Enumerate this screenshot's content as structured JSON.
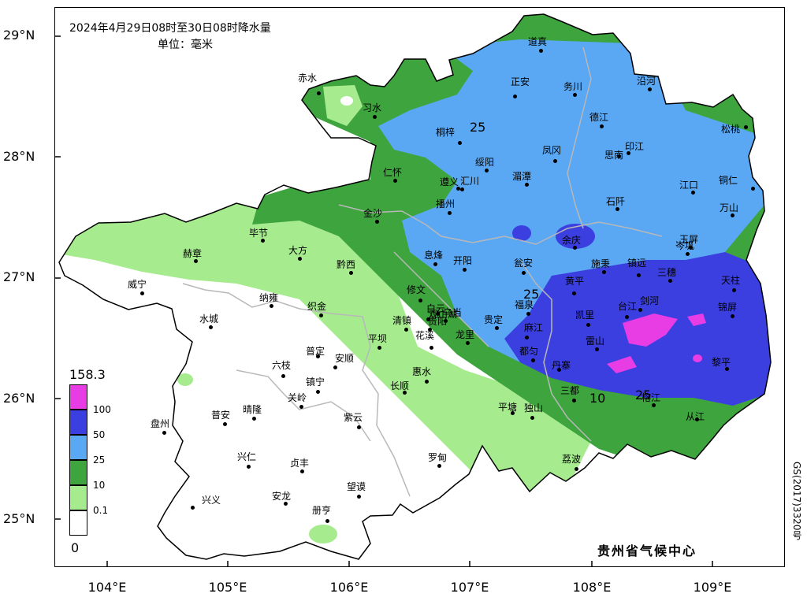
{
  "title": "2024年4月29日08时至30日08时降水量",
  "unit": "单位：毫米",
  "credit": "贵州省气候中心",
  "copyright": "GS(2017)3320号",
  "lat_labels": [
    "29°N",
    "28°N",
    "27°N",
    "26°N",
    "25°N"
  ],
  "lon_labels": [
    "104°E",
    "105°E",
    "106°E",
    "107°E",
    "108°E",
    "109°E"
  ],
  "legend": {
    "max": "158.3",
    "min": "0",
    "items": [
      {
        "label": "100",
        "color": "#e83ce4"
      },
      {
        "label": "50",
        "color": "#3c3fe0"
      },
      {
        "label": "25",
        "color": "#5aa8f4"
      },
      {
        "label": "10",
        "color": "#3ea43e"
      },
      {
        "label": "0.1",
        "color": "#a6ec8e"
      },
      {
        "label": "",
        "color": "#ffffff"
      }
    ]
  },
  "contour_labels": [
    "25",
    "25",
    "10",
    "25"
  ],
  "cities": [
    "道真",
    "赤水",
    "沿河",
    "正安",
    "务川",
    "习水",
    "德江",
    "松桃",
    "桐梓",
    "印江",
    "凤冈",
    "思南",
    "绥阳",
    "湄潭",
    "仁怀",
    "遵义",
    "汇川",
    "江口",
    "铜仁",
    "播州",
    "石阡",
    "万山",
    "金沙",
    "毕节",
    "余庆",
    "岑巩",
    "玉屏",
    "赫章",
    "大方",
    "黔西",
    "息烽",
    "开阳",
    "瓮安",
    "施秉",
    "镇远",
    "三穗",
    "天柱",
    "威宁",
    "纳雍",
    "修文",
    "黄平",
    "织金",
    "白云",
    "乌当",
    "福泉",
    "剑河",
    "台江",
    "锦屏",
    "清镇",
    "贵阳",
    "水城",
    "贵定",
    "凯里",
    "观山湖",
    "麻江",
    "平坝",
    "花溪",
    "龙里",
    "雷山",
    "普定",
    "安顺",
    "都匀",
    "黎平",
    "六枝",
    "丹寨",
    "惠水",
    "镇宁",
    "长顺",
    "三都",
    "榕江",
    "关岭",
    "盘州",
    "普安",
    "晴隆",
    "紫云",
    "平塘",
    "独山",
    "从江",
    "兴仁",
    "贞丰",
    "罗甸",
    "荔波",
    "望谟",
    "安龙",
    "兴义",
    "册亨"
  ]
}
